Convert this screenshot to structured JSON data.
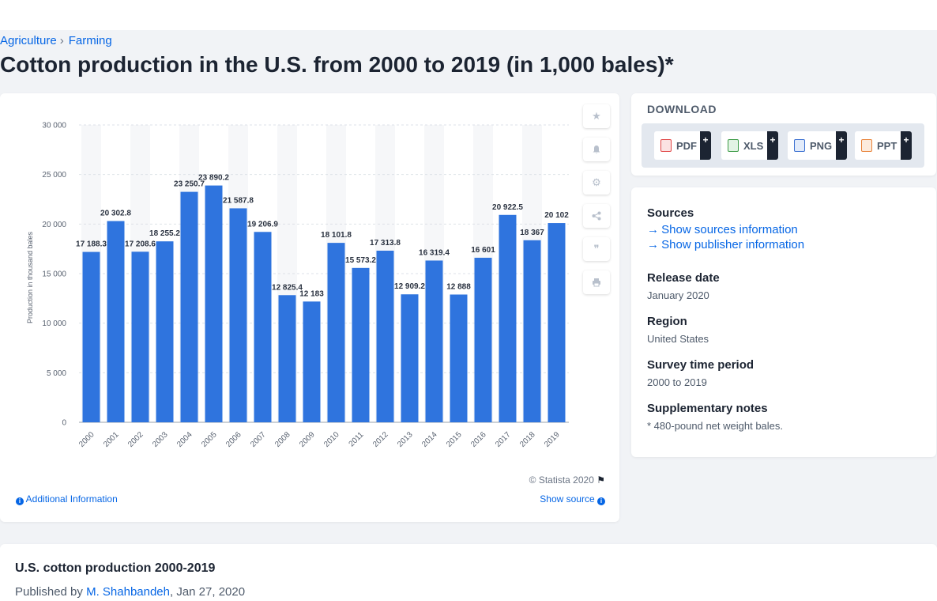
{
  "breadcrumb": {
    "items": [
      "Agriculture",
      "Farming"
    ],
    "separator": "›"
  },
  "page_title": "Cotton production in the U.S. from 2000 to 2019 (in 1,000 bales)*",
  "chart_card": {
    "credit": "© Statista 2020",
    "additional_info": "Additional Information",
    "show_source": "Show source"
  },
  "download": {
    "title": "DOWNLOAD",
    "buttons": [
      {
        "label": "PDF",
        "color": "#e04646"
      },
      {
        "label": "XLS",
        "color": "#3a9a45"
      },
      {
        "label": "PNG",
        "color": "#3a6fd1"
      },
      {
        "label": "PPT",
        "color": "#e8833a"
      }
    ],
    "plus": "+"
  },
  "meta": {
    "sources_heading": "Sources",
    "sources_link": "Show sources information",
    "publisher_link": "Show publisher information",
    "release_heading": "Release date",
    "release_value": "January 2020",
    "region_heading": "Region",
    "region_value": "United States",
    "survey_heading": "Survey time period",
    "survey_value": "2000 to 2019",
    "notes_heading": "Supplementary notes",
    "notes_value": "* 480-pound net weight bales."
  },
  "bottom": {
    "title": "U.S. cotton production 2000-2019",
    "published_by": "Published by",
    "author": "M. Shahbandeh",
    "date": ", Jan 27, 2020"
  },
  "chart_data": {
    "type": "bar",
    "categories": [
      "2000",
      "2001",
      "2002",
      "2003",
      "2004",
      "2005",
      "2006",
      "2007",
      "2008",
      "2009",
      "2010",
      "2011",
      "2012",
      "2013",
      "2014",
      "2015",
      "2016",
      "2017",
      "2018",
      "2019"
    ],
    "values": [
      17188.3,
      20302.8,
      17208.6,
      18255.2,
      23250.7,
      23890.2,
      21587.8,
      19206.9,
      12825.4,
      12183,
      18101.8,
      15573.2,
      17313.8,
      12909.2,
      16319.4,
      12888,
      16601,
      20922.5,
      18367,
      20102
    ],
    "value_labels": [
      "17 188.3",
      "20 302.8",
      "17 208.6",
      "18 255.2",
      "23 250.7",
      "23 890.2",
      "21 587.8",
      "19 206.9",
      "12 825.4",
      "12 183",
      "18 101.8",
      "15 573.2",
      "17 313.8",
      "12 909.2",
      "16 319.4",
      "12 888",
      "16 601",
      "20 922.5",
      "18 367",
      "20 102"
    ],
    "ylabel": "Production in thousand bales",
    "ylim": [
      0,
      30000
    ],
    "yticks": [
      0,
      5000,
      10000,
      15000,
      20000,
      25000,
      30000
    ],
    "ytick_labels": [
      "0",
      "5 000",
      "10 000",
      "15 000",
      "20 000",
      "25 000",
      "30 000"
    ],
    "bar_color": "#2f74de",
    "grid": true
  }
}
